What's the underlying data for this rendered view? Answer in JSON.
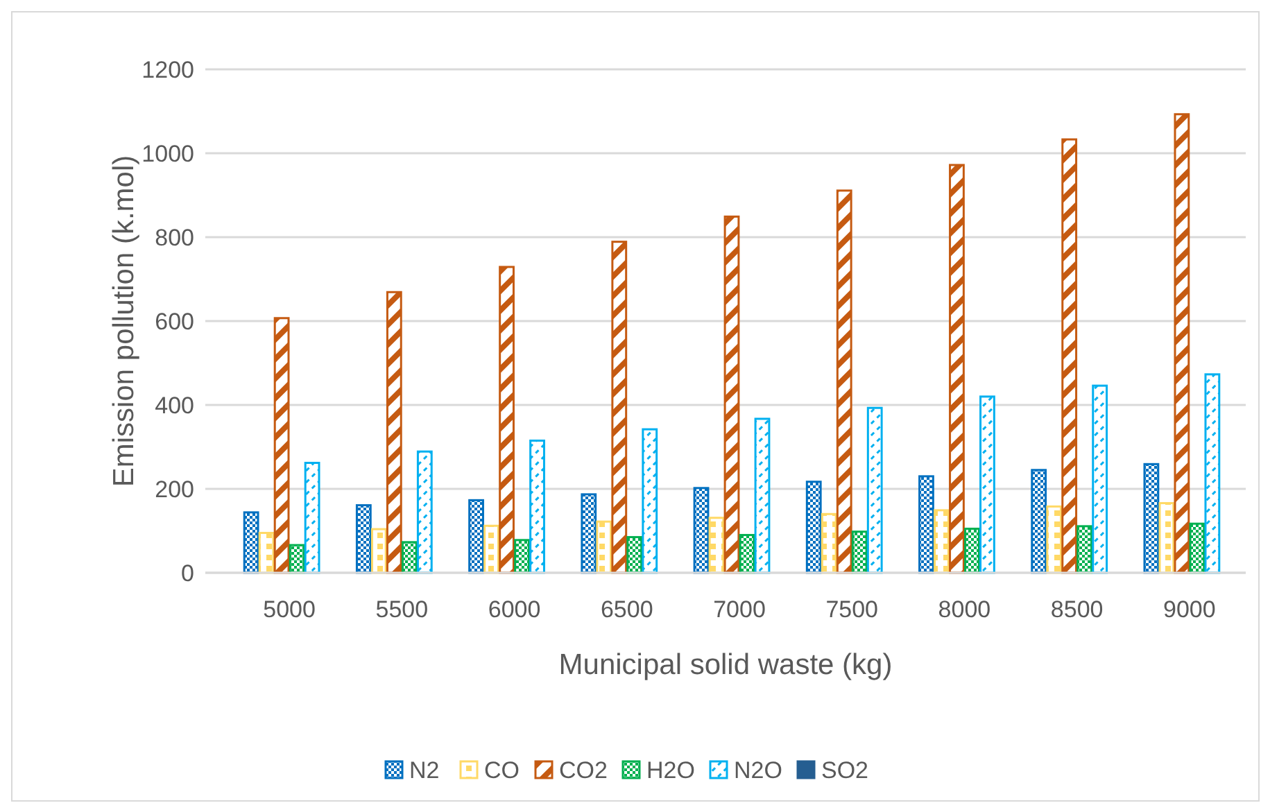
{
  "chart_data": {
    "type": "bar",
    "xlabel": "Municipal solid waste (kg)",
    "ylabel": "Emission pollution (k.mol)",
    "categories": [
      "5000",
      "5500",
      "6000",
      "6500",
      "7000",
      "7500",
      "8000",
      "8500",
      "9000"
    ],
    "series": [
      {
        "name": "N2",
        "color": "#0070c0",
        "values": [
          144,
          161,
          173,
          187,
          202,
          217,
          230,
          245,
          259
        ]
      },
      {
        "name": "CO",
        "color": "#ffd966",
        "values": [
          95,
          104,
          112,
          122,
          131,
          140,
          149,
          158,
          166
        ]
      },
      {
        "name": "CO2",
        "color": "#c55a11",
        "values": [
          607,
          669,
          729,
          789,
          849,
          911,
          972,
          1033,
          1093
        ]
      },
      {
        "name": "H2O",
        "color": "#00b050",
        "values": [
          66,
          73,
          78,
          85,
          90,
          98,
          105,
          111,
          117
        ]
      },
      {
        "name": "N2O",
        "color": "#00b0f0",
        "values": [
          262,
          289,
          315,
          342,
          367,
          393,
          420,
          446,
          473
        ]
      },
      {
        "name": "SO2",
        "color": "#255e91",
        "values": [
          0,
          0,
          0,
          0,
          0,
          0,
          0,
          0,
          0
        ]
      }
    ],
    "ylim": [
      0,
      1200
    ],
    "yticks": [
      0,
      200,
      400,
      600,
      800,
      1000,
      1200
    ],
    "grid": "y",
    "legend": "bottom"
  }
}
